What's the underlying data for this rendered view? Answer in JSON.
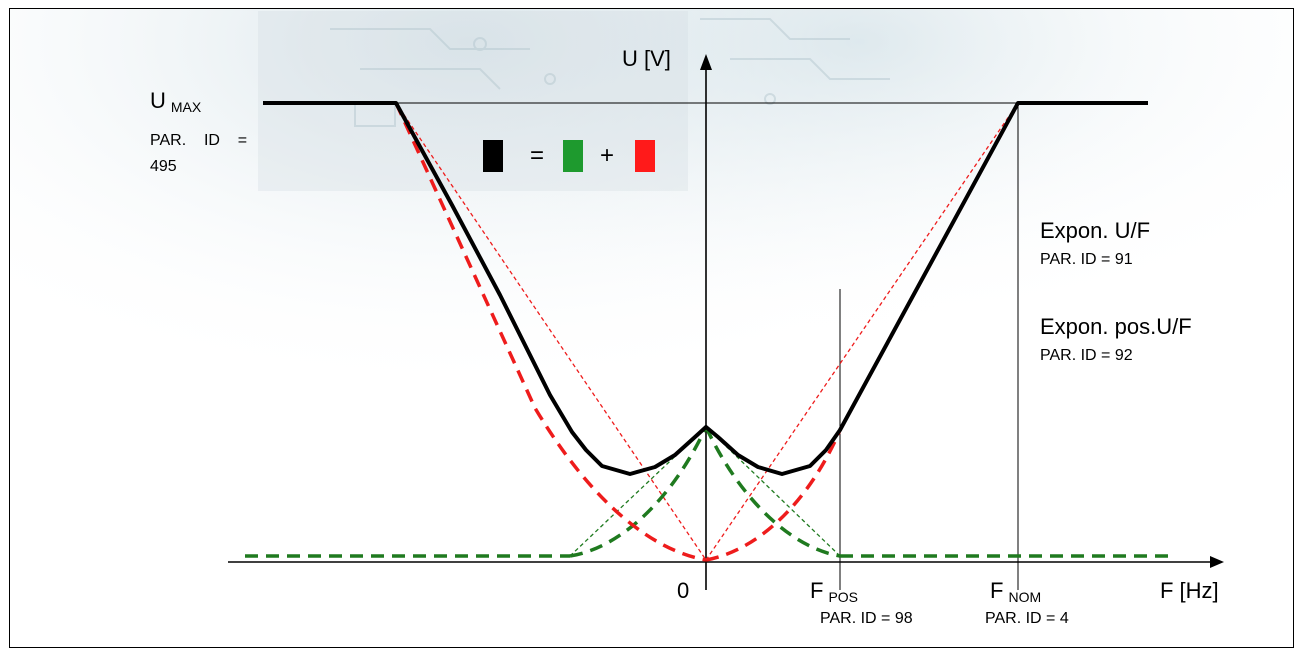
{
  "axes": {
    "y_label": "U [V]",
    "x_label": "F [Hz]",
    "origin_label": "0"
  },
  "labels": {
    "u_max": {
      "main": "U",
      "sub": "MAX",
      "par_line1": "PAR.    ID    =",
      "par_line2": "495"
    },
    "f_pos": {
      "main": "F",
      "sub": "POS",
      "par": "PAR. ID = 98"
    },
    "f_nom": {
      "main": "F",
      "sub": "NOM",
      "par": "PAR. ID = 4"
    },
    "expon_uf": {
      "title": "Expon. U/F",
      "par": "PAR. ID = 91"
    },
    "expon_pos_uf": {
      "title": "Expon. pos.U/F",
      "par": "PAR. ID = 92"
    }
  },
  "legend": {
    "equals": "=",
    "plus": "+"
  },
  "colors": {
    "total_curve": "#000000",
    "green_component": "#1f7a1f",
    "red_component": "#ee1c1c",
    "legend_green": "#1e9a2e",
    "legend_red": "#ff1a1a",
    "legend_black": "#000000",
    "background_texture": "#cfe0e8"
  },
  "chart_data": {
    "type": "line",
    "title": "",
    "xlabel": "F [Hz]",
    "ylabel": "U [V]",
    "series": [
      {
        "values": []
      }
    ]
  }
}
